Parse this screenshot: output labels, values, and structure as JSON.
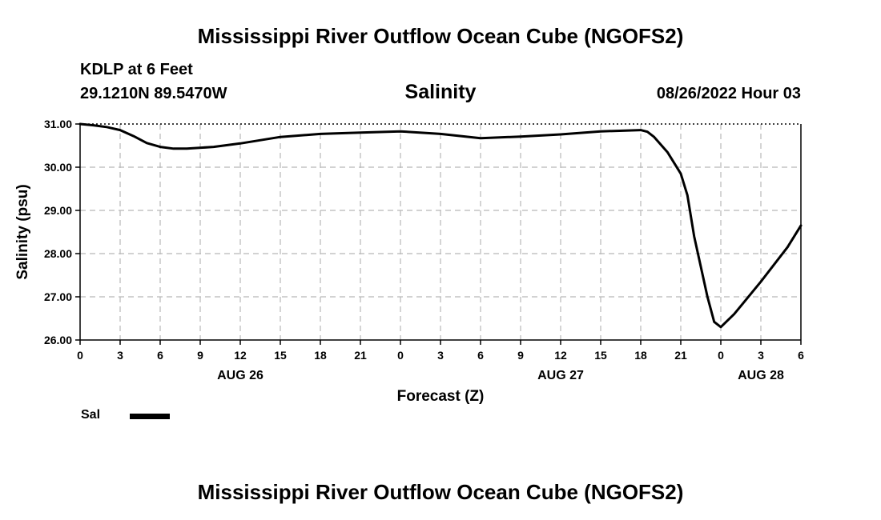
{
  "page": {
    "title_top": "Mississippi River Outflow Ocean Cube (NGOFS2)",
    "title_bottom": "Mississippi River Outflow Ocean Cube (NGOFS2)",
    "station": "KDLP at 6 Feet",
    "coords": "29.1210N  89.5470W",
    "panel_title": "Salinity",
    "timestamp": "08/26/2022 Hour 03"
  },
  "chart_data": {
    "type": "line",
    "title": "Salinity",
    "xlabel": "Forecast (Z)",
    "ylabel": "Salinity (psu)",
    "ylim": [
      26.0,
      31.0
    ],
    "xlim": [
      0,
      54
    ],
    "x_unit": "forecast hours from AUG 26 00Z (AUG 26 00Z = 0)",
    "y_ticks": [
      "26.00",
      "27.00",
      "28.00",
      "29.00",
      "30.00",
      "31.00"
    ],
    "y_tick_values": [
      26,
      27,
      28,
      29,
      30,
      31
    ],
    "x_ticks": [
      "0",
      "3",
      "6",
      "9",
      "12",
      "15",
      "18",
      "21",
      "0",
      "3",
      "6",
      "9",
      "12",
      "15",
      "18",
      "21",
      "0",
      "3",
      "6"
    ],
    "x_tick_values": [
      0,
      3,
      6,
      9,
      12,
      15,
      18,
      21,
      24,
      27,
      30,
      33,
      36,
      39,
      42,
      45,
      48,
      51,
      54
    ],
    "date_labels": [
      {
        "text": "AUG 26",
        "x": 12
      },
      {
        "text": "AUG 27",
        "x": 36
      },
      {
        "text": "AUG 28",
        "x": 51
      }
    ],
    "grid": true,
    "legend": [
      {
        "name": "Sal",
        "color": "#000000"
      }
    ],
    "series": [
      {
        "name": "Sal",
        "color": "#000000",
        "x": [
          0,
          1,
          2,
          3,
          4,
          5,
          6,
          7,
          8,
          10,
          12,
          15,
          18,
          21,
          24,
          27,
          30,
          33,
          36,
          39,
          42,
          42.5,
          43,
          44,
          45,
          45.5,
          46,
          47,
          47.5,
          48,
          49,
          51,
          53,
          54
        ],
        "values": [
          31.0,
          30.97,
          30.93,
          30.86,
          30.72,
          30.56,
          30.47,
          30.43,
          30.43,
          30.47,
          30.55,
          30.7,
          30.77,
          30.8,
          30.83,
          30.77,
          30.67,
          30.71,
          30.76,
          30.83,
          30.86,
          30.82,
          30.7,
          30.35,
          29.85,
          29.35,
          28.4,
          27.0,
          26.42,
          26.3,
          26.6,
          27.35,
          28.15,
          28.65
        ]
      }
    ]
  }
}
